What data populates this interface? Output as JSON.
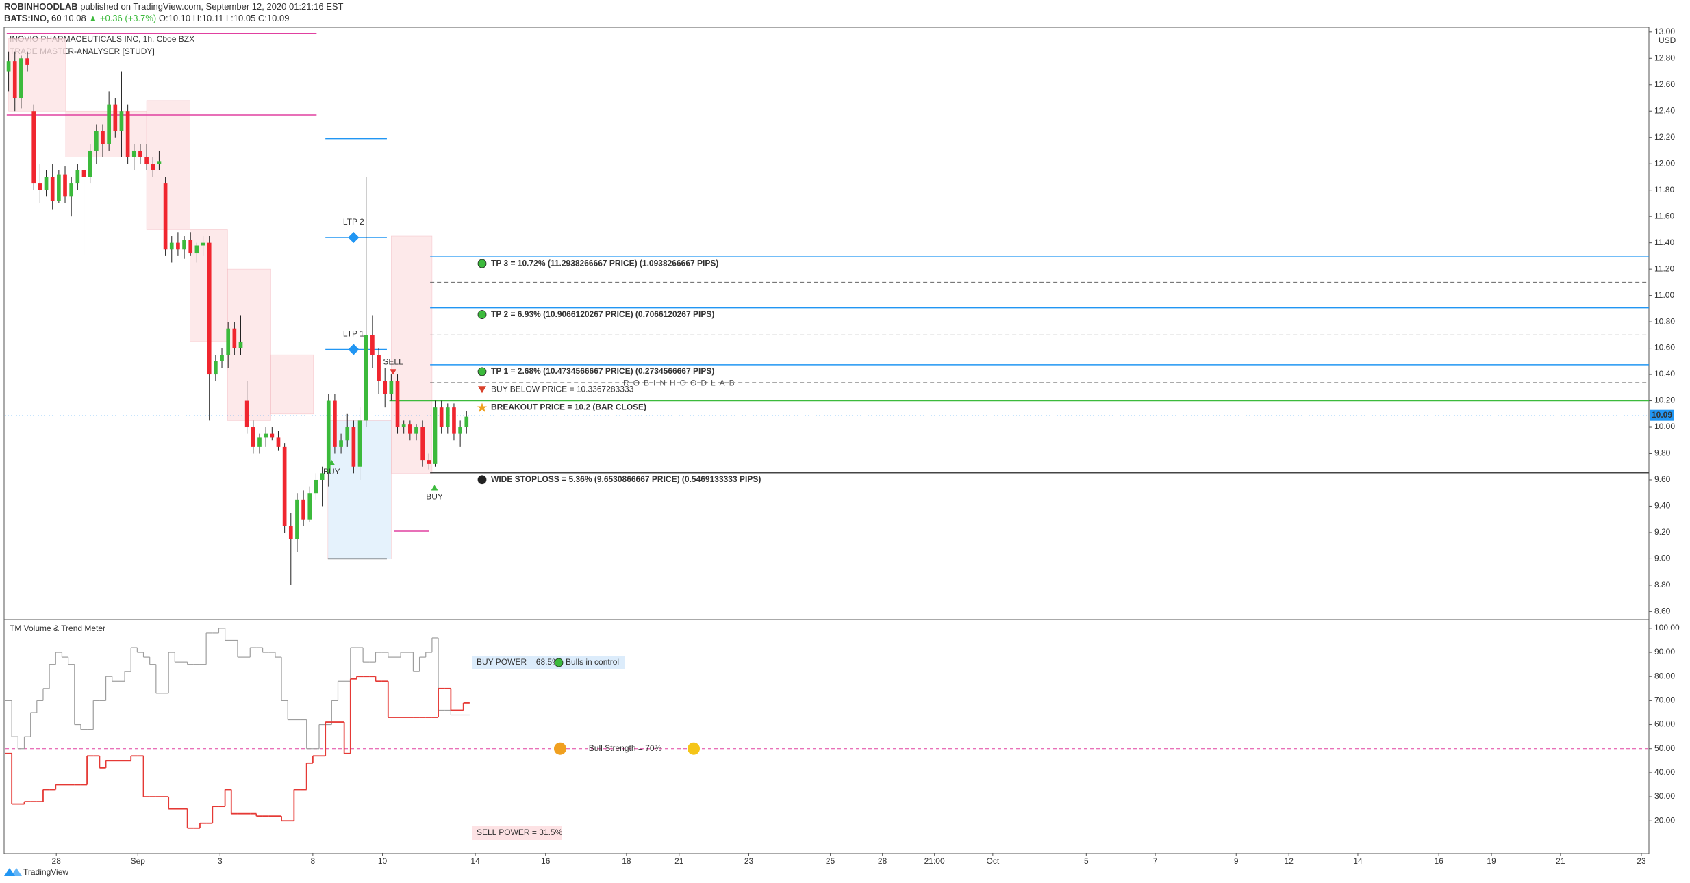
{
  "header": {
    "author": "ROBINHOODLAB",
    "published": "published on TradingView.com, September 12, 2020 01:21:16 EST",
    "symbol": "BATS:INO, 60",
    "price": "10.08",
    "change": "+0.36 (+3.7%)",
    "ohlc": "O:10.10 H:10.11 L:10.05 C:10.09"
  },
  "footer": "TradingView",
  "chart_data": [
    {
      "type": "candlestick",
      "title": "INOVIO PHARMACEUTICALS INC, 1h, Cboe BZX",
      "subtitle": "TRADE MASTER-ANALYSER [STUDY]",
      "unit": "USD",
      "up_color": "#3cba3c",
      "down_color": "#f0262f",
      "watermark": "ROBINHOODLAB",
      "open": [
        12.7,
        12.78,
        12.5,
        12.8,
        12.4,
        11.85,
        11.8,
        11.9,
        11.72,
        11.92,
        11.75,
        11.85,
        11.95,
        11.9,
        12.1,
        12.25,
        12.15,
        12.45,
        12.25,
        12.4,
        12.05,
        12.1,
        12.05,
        12.0,
        12.0,
        11.85,
        11.35,
        11.4,
        11.35,
        11.42,
        11.32,
        11.38,
        11.4,
        10.4,
        10.5,
        10.55,
        10.75,
        10.6,
        10.2,
        10.0,
        9.85,
        9.92,
        9.95,
        9.92,
        9.85,
        9.25,
        9.15,
        9.45,
        9.3,
        9.5,
        9.6,
        9.65,
        10.2,
        9.85,
        9.9,
        10.0,
        9.7,
        10.05,
        10.7,
        10.55,
        10.35,
        10.25,
        10.35,
        10.0,
        10.02,
        9.95,
        10.0,
        9.75,
        9.72,
        10.15,
        10.0,
        10.15,
        9.95,
        10.0
      ],
      "high": [
        12.85,
        12.85,
        12.82,
        12.85,
        12.45,
        12.0,
        11.95,
        12.0,
        11.95,
        11.98,
        11.9,
        12.0,
        12.05,
        12.15,
        12.3,
        12.3,
        12.55,
        12.5,
        12.7,
        12.45,
        12.15,
        12.15,
        12.15,
        12.05,
        12.1,
        11.9,
        11.45,
        11.48,
        11.45,
        11.48,
        11.4,
        11.45,
        11.45,
        10.55,
        10.6,
        10.8,
        10.8,
        10.85,
        10.35,
        10.05,
        9.95,
        10.0,
        10.0,
        9.97,
        9.88,
        9.35,
        9.5,
        9.52,
        9.55,
        9.65,
        9.7,
        10.25,
        10.25,
        9.95,
        10.1,
        10.05,
        10.15,
        11.9,
        10.85,
        10.6,
        10.45,
        10.4,
        10.4,
        10.05,
        10.05,
        10.02,
        10.05,
        9.8,
        10.2,
        10.2,
        10.18,
        10.18,
        10.05,
        10.12
      ],
      "low": [
        12.55,
        12.4,
        12.42,
        12.7,
        11.8,
        11.7,
        11.75,
        11.65,
        11.7,
        11.7,
        11.6,
        11.8,
        11.3,
        11.85,
        12.0,
        12.05,
        12.1,
        12.2,
        12.05,
        12.0,
        11.95,
        12.0,
        11.95,
        11.9,
        11.95,
        11.3,
        11.25,
        11.3,
        11.28,
        11.3,
        11.25,
        11.3,
        10.05,
        10.35,
        10.45,
        10.45,
        10.55,
        10.55,
        9.95,
        9.8,
        9.8,
        9.85,
        9.9,
        9.82,
        9.2,
        8.8,
        9.05,
        9.25,
        9.28,
        9.45,
        9.4,
        9.55,
        9.8,
        9.8,
        9.85,
        9.65,
        9.6,
        10.0,
        10.45,
        10.25,
        10.15,
        10.2,
        9.95,
        9.95,
        9.9,
        9.9,
        9.7,
        9.68,
        9.7,
        9.95,
        9.95,
        9.9,
        9.85,
        9.95
      ],
      "close": [
        12.78,
        12.5,
        12.8,
        12.75,
        11.85,
        11.8,
        11.9,
        11.72,
        11.92,
        11.75,
        11.85,
        11.95,
        11.9,
        12.1,
        12.25,
        12.15,
        12.45,
        12.25,
        12.4,
        12.05,
        12.1,
        12.05,
        12.0,
        11.95,
        12.02,
        11.35,
        11.4,
        11.35,
        11.42,
        11.32,
        11.38,
        11.4,
        10.4,
        10.5,
        10.55,
        10.75,
        10.6,
        10.65,
        10.0,
        9.85,
        9.92,
        9.95,
        9.92,
        9.85,
        9.25,
        9.15,
        9.45,
        9.3,
        9.5,
        9.6,
        9.65,
        10.2,
        9.85,
        9.9,
        10.0,
        9.7,
        10.05,
        10.7,
        10.55,
        10.35,
        10.25,
        10.35,
        10.0,
        10.02,
        9.95,
        10.0,
        9.75,
        9.72,
        10.15,
        10.0,
        10.15,
        9.95,
        10.0,
        10.08
      ],
      "xlim": [
        -0.5,
        261.5
      ],
      "xticks": [
        {
          "value": 7.6,
          "label": "28"
        },
        {
          "value": 20.6,
          "label": "Sep"
        },
        {
          "value": 33.7,
          "label": "3"
        },
        {
          "value": 48.5,
          "label": "8"
        },
        {
          "value": 59.6,
          "label": "10"
        },
        {
          "value": 74.4,
          "label": "14"
        },
        {
          "value": 85.6,
          "label": "16"
        },
        {
          "value": 98.5,
          "label": "18"
        },
        {
          "value": 106.9,
          "label": "21"
        },
        {
          "value": 118,
          "label": "23"
        },
        {
          "value": 131,
          "label": "25"
        },
        {
          "value": 139.3,
          "label": "28"
        },
        {
          "value": 147.6,
          "label": "21:00"
        },
        {
          "value": 156.9,
          "label": "Oct"
        },
        {
          "value": 171.8,
          "label": "5"
        },
        {
          "value": 182.8,
          "label": "7"
        },
        {
          "value": 195.7,
          "label": "9"
        },
        {
          "value": 204.1,
          "label": "12"
        },
        {
          "value": 215.1,
          "label": "14"
        },
        {
          "value": 228,
          "label": "16"
        },
        {
          "value": 236.4,
          "label": "19"
        },
        {
          "value": 247.4,
          "label": "21"
        },
        {
          "value": 260.3,
          "label": "23"
        }
      ],
      "ylim": [
        8.55,
        13.025
      ],
      "yticks": [
        {
          "value": 8.6,
          "label": "8.60"
        },
        {
          "value": 8.8,
          "label": "8.80"
        },
        {
          "value": 9,
          "label": "9.00"
        },
        {
          "value": 9.2,
          "label": "9.20"
        },
        {
          "value": 9.4,
          "label": "9.40"
        },
        {
          "value": 9.6,
          "label": "9.60"
        },
        {
          "value": 9.8,
          "label": "9.80"
        },
        {
          "value": 10,
          "label": "10.00"
        },
        {
          "value": 10.2,
          "label": "10.20"
        },
        {
          "value": 10.4,
          "label": "10.40"
        },
        {
          "value": 10.6,
          "label": "10.60"
        },
        {
          "value": 10.8,
          "label": "10.80"
        },
        {
          "value": 11,
          "label": "11.00"
        },
        {
          "value": 11.2,
          "label": "11.20"
        },
        {
          "value": 11.4,
          "label": "11.40"
        },
        {
          "value": 11.6,
          "label": "11.60"
        },
        {
          "value": 11.8,
          "label": "11.80"
        },
        {
          "value": 12,
          "label": "12.00"
        },
        {
          "value": 12.2,
          "label": "12.20"
        },
        {
          "value": 12.4,
          "label": "12.40"
        },
        {
          "value": 12.6,
          "label": "12.60"
        },
        {
          "value": 12.8,
          "label": "12.80"
        },
        {
          "value": 13,
          "label": "13.00"
        }
      ],
      "last_price": 10.09,
      "last_price_color": "#2196f3",
      "zones": [
        {
          "x": [
            0,
            9.1
          ],
          "y": [
            12.4,
            12.95
          ],
          "color": "#fde2e4"
        },
        {
          "x": [
            9.1,
            22
          ],
          "y": [
            12.05,
            12.4
          ],
          "color": "#fde2e4"
        },
        {
          "x": [
            22,
            28.9
          ],
          "y": [
            11.5,
            12.48
          ],
          "color": "#fde2e4"
        },
        {
          "x": [
            28.9,
            34.9
          ],
          "y": [
            10.65,
            11.5
          ],
          "color": "#fde2e4"
        },
        {
          "x": [
            34.9,
            41.8
          ],
          "y": [
            10.05,
            11.2
          ],
          "color": "#fde2e4"
        },
        {
          "x": [
            41.8,
            48.6
          ],
          "y": [
            10.1,
            10.55
          ],
          "color": "#fde2e4"
        },
        {
          "x": [
            50.9,
            61
          ],
          "y": [
            9.0,
            10.05
          ],
          "color": "#ddeefb"
        },
        {
          "x": [
            61,
            67.5
          ],
          "y": [
            9.65,
            11.45
          ],
          "color": "#fde2e4"
        }
      ],
      "segments": [
        {
          "x": [
            -0.3,
            49.1
          ],
          "value": 12.99,
          "color": "#e040a0"
        },
        {
          "x": [
            -0.3,
            49.1
          ],
          "value": 12.37,
          "color": "#e040a0"
        },
        {
          "x": [
            50.5,
            60.3
          ],
          "value": 12.19,
          "color": "#2196f3"
        },
        {
          "x": [
            50.5,
            60.3
          ],
          "value": 11.44,
          "color": "#2196f3"
        },
        {
          "x": [
            50.5,
            60.3
          ],
          "value": 10.59,
          "color": "#2196f3"
        },
        {
          "x": [
            50.9,
            60.3
          ],
          "value": 9.0,
          "color": "#333333"
        },
        {
          "x": [
            61.5,
            67
          ],
          "value": 9.21,
          "color": "#e040a0"
        }
      ],
      "levels": [
        {
          "label": "TP 3 = 10.72% (11.2938266667 PRICE) (1.0938266667 PIPS)",
          "value": 11.2938266667,
          "start": 67.2,
          "color": "#2196f3",
          "text_color": "#2196f3",
          "icon": "circle",
          "icon_color": "#3cba3c"
        },
        {
          "label": "TP 2 = 6.93% (10.9066120267 PRICE) (0.7066120267 PIPS)",
          "value": 10.9066120267,
          "start": 67.2,
          "color": "#2196f3",
          "text_color": "#2196f3",
          "icon": "circle",
          "icon_color": "#3cba3c"
        },
        {
          "label": "TP 1 = 2.68% (10.4734566667 PRICE) (0.2734566667 PIPS)",
          "value": 10.4734566667,
          "start": 67.2,
          "color": "#2196f3",
          "text_color": "#2196f3",
          "icon": "circle",
          "icon_color": "#3cba3c"
        },
        {
          "label": "BUY BELOW PRICE = 10.3367283333",
          "value": 10.3367283333,
          "start": 67.2,
          "color": "#555555",
          "text_color": "#444444",
          "icon": "triangle",
          "icon_color": "#d9412b",
          "dashed": true
        },
        {
          "label": "BREAKOUT PRICE = 10.2 (BAR CLOSE)",
          "value": 10.2,
          "start": 60.7,
          "color": "#3cba3c",
          "text_color": "#2196f3",
          "icon": "star",
          "icon_color": "#f0a020"
        },
        {
          "label": "WIDE STOPLOSS = 5.36% (9.6530866667 PRICE) (0.5469133333 PIPS)",
          "value": 9.6530866667,
          "start": 67.2,
          "color": "#444444",
          "text_color": "#333333",
          "icon": "circle",
          "icon_color": "#222222"
        }
      ],
      "dashed_levels": [
        11.1,
        10.7
      ],
      "markers": [
        {
          "label": "LTP 2",
          "x": 55,
          "y": 11.44,
          "shape": "diamond",
          "color": "#2196f3"
        },
        {
          "label": "LTP 1",
          "x": 55,
          "y": 10.59,
          "shape": "diamond",
          "color": "#2196f3"
        },
        {
          "label": "SELL",
          "x": 61.3,
          "y": 10.42,
          "shape": "down",
          "color": "#e53935"
        },
        {
          "label": "BUY",
          "x": 51.5,
          "y": 9.73,
          "shape": "up",
          "color": "#3cba3c"
        },
        {
          "label": "BUY",
          "x": 67.9,
          "y": 9.54,
          "shape": "up",
          "color": "#3cba3c"
        }
      ]
    },
    {
      "type": "step-line",
      "title": "TM Volume & Trend Meter",
      "ylim": [
        6.7,
        103.1
      ],
      "yticks": [
        {
          "value": 20,
          "label": "20.00"
        },
        {
          "value": 30,
          "label": "30.00"
        },
        {
          "value": 40,
          "label": "40.00"
        },
        {
          "value": 50,
          "label": "50.00"
        },
        {
          "value": 60,
          "label": "60.00"
        },
        {
          "value": 70,
          "label": "70.00"
        },
        {
          "value": 80,
          "label": "80.00"
        },
        {
          "value": 90,
          "label": "90.00"
        },
        {
          "value": 100,
          "label": "100.00"
        }
      ],
      "reference_line": 50,
      "series": [
        {
          "color": "#9e9e9e",
          "values": [
            70,
            55,
            50,
            55,
            65,
            70,
            75,
            85,
            90,
            88,
            85,
            60,
            58,
            58,
            70,
            70,
            80,
            78,
            78,
            82,
            92,
            90,
            88,
            85,
            73,
            73,
            90,
            86,
            86,
            85,
            85,
            85,
            98,
            98,
            100,
            95,
            95,
            88,
            88,
            92,
            92,
            90,
            90,
            88,
            70,
            62,
            62,
            62,
            50,
            50,
            60,
            60,
            70,
            78,
            78,
            92,
            92,
            86,
            86,
            90,
            90,
            88,
            88,
            90,
            90,
            82,
            88,
            90,
            96,
            66,
            66,
            64,
            64,
            64
          ]
        },
        {
          "color": "#e53935",
          "values": [
            48,
            27,
            27,
            28,
            28,
            28,
            33,
            33,
            35,
            35,
            35,
            35,
            35,
            47,
            47,
            42,
            45,
            45,
            45,
            45,
            47,
            47,
            30,
            30,
            30,
            30,
            25,
            25,
            25,
            17,
            17,
            19,
            19,
            26,
            26,
            33,
            23,
            23,
            23,
            23,
            22,
            22,
            22,
            22,
            20,
            20,
            33,
            33,
            44,
            47,
            47,
            61,
            61,
            61,
            48,
            79,
            80,
            80,
            80,
            78,
            78,
            63,
            63,
            63,
            63,
            63,
            63,
            63,
            63,
            75,
            75,
            66,
            66,
            69
          ]
        }
      ],
      "annotations": {
        "buy_power": "BUY POWER = 68.5%",
        "trend": "Bulls in control",
        "strength": "Bull Strength = 70%",
        "sell_power": "SELL POWER = 31.5%"
      }
    }
  ]
}
